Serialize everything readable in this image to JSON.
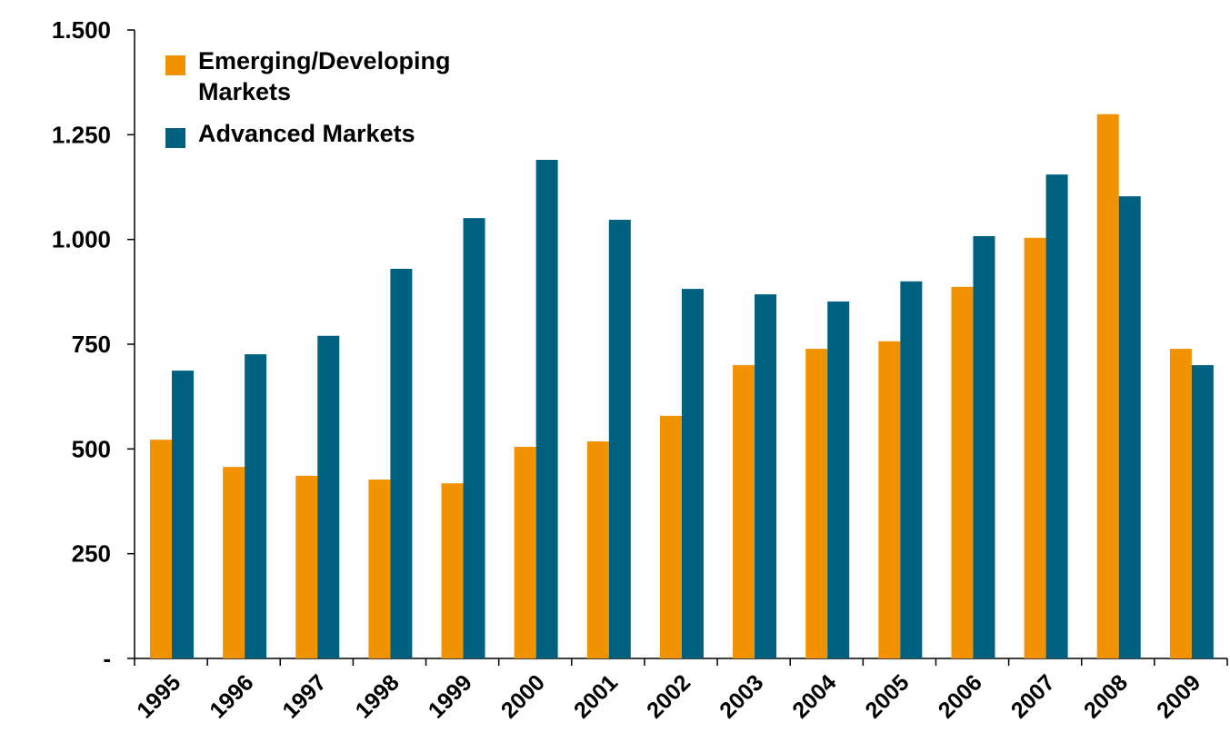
{
  "chart_data": {
    "type": "bar",
    "categories": [
      "1995",
      "1996",
      "1997",
      "1998",
      "1999",
      "2000",
      "2001",
      "2002",
      "2003",
      "2004",
      "2005",
      "2006",
      "2007",
      "2008",
      "2009"
    ],
    "series": [
      {
        "name": "Emerging/Developing Markets",
        "color": "#f39200",
        "values": [
          522,
          457,
          436,
          427,
          418,
          505,
          518,
          579,
          700,
          739,
          757,
          887,
          1004,
          1299,
          739
        ]
      },
      {
        "name": "Advanced Markets",
        "color": "#00607f",
        "values": [
          687,
          726,
          770,
          930,
          1051,
          1190,
          1047,
          882,
          869,
          852,
          900,
          1008,
          1155,
          1103,
          700
        ]
      }
    ],
    "ylim": [
      0,
      1500
    ],
    "yticks": [
      {
        "value": 0,
        "label": "-"
      },
      250,
      500,
      750,
      {
        "value": 1000,
        "label": "1.000"
      },
      {
        "value": 1250,
        "label": "1.250"
      },
      {
        "value": 1500,
        "label": "1.500"
      }
    ],
    "grid": false,
    "legend": "top-left"
  }
}
